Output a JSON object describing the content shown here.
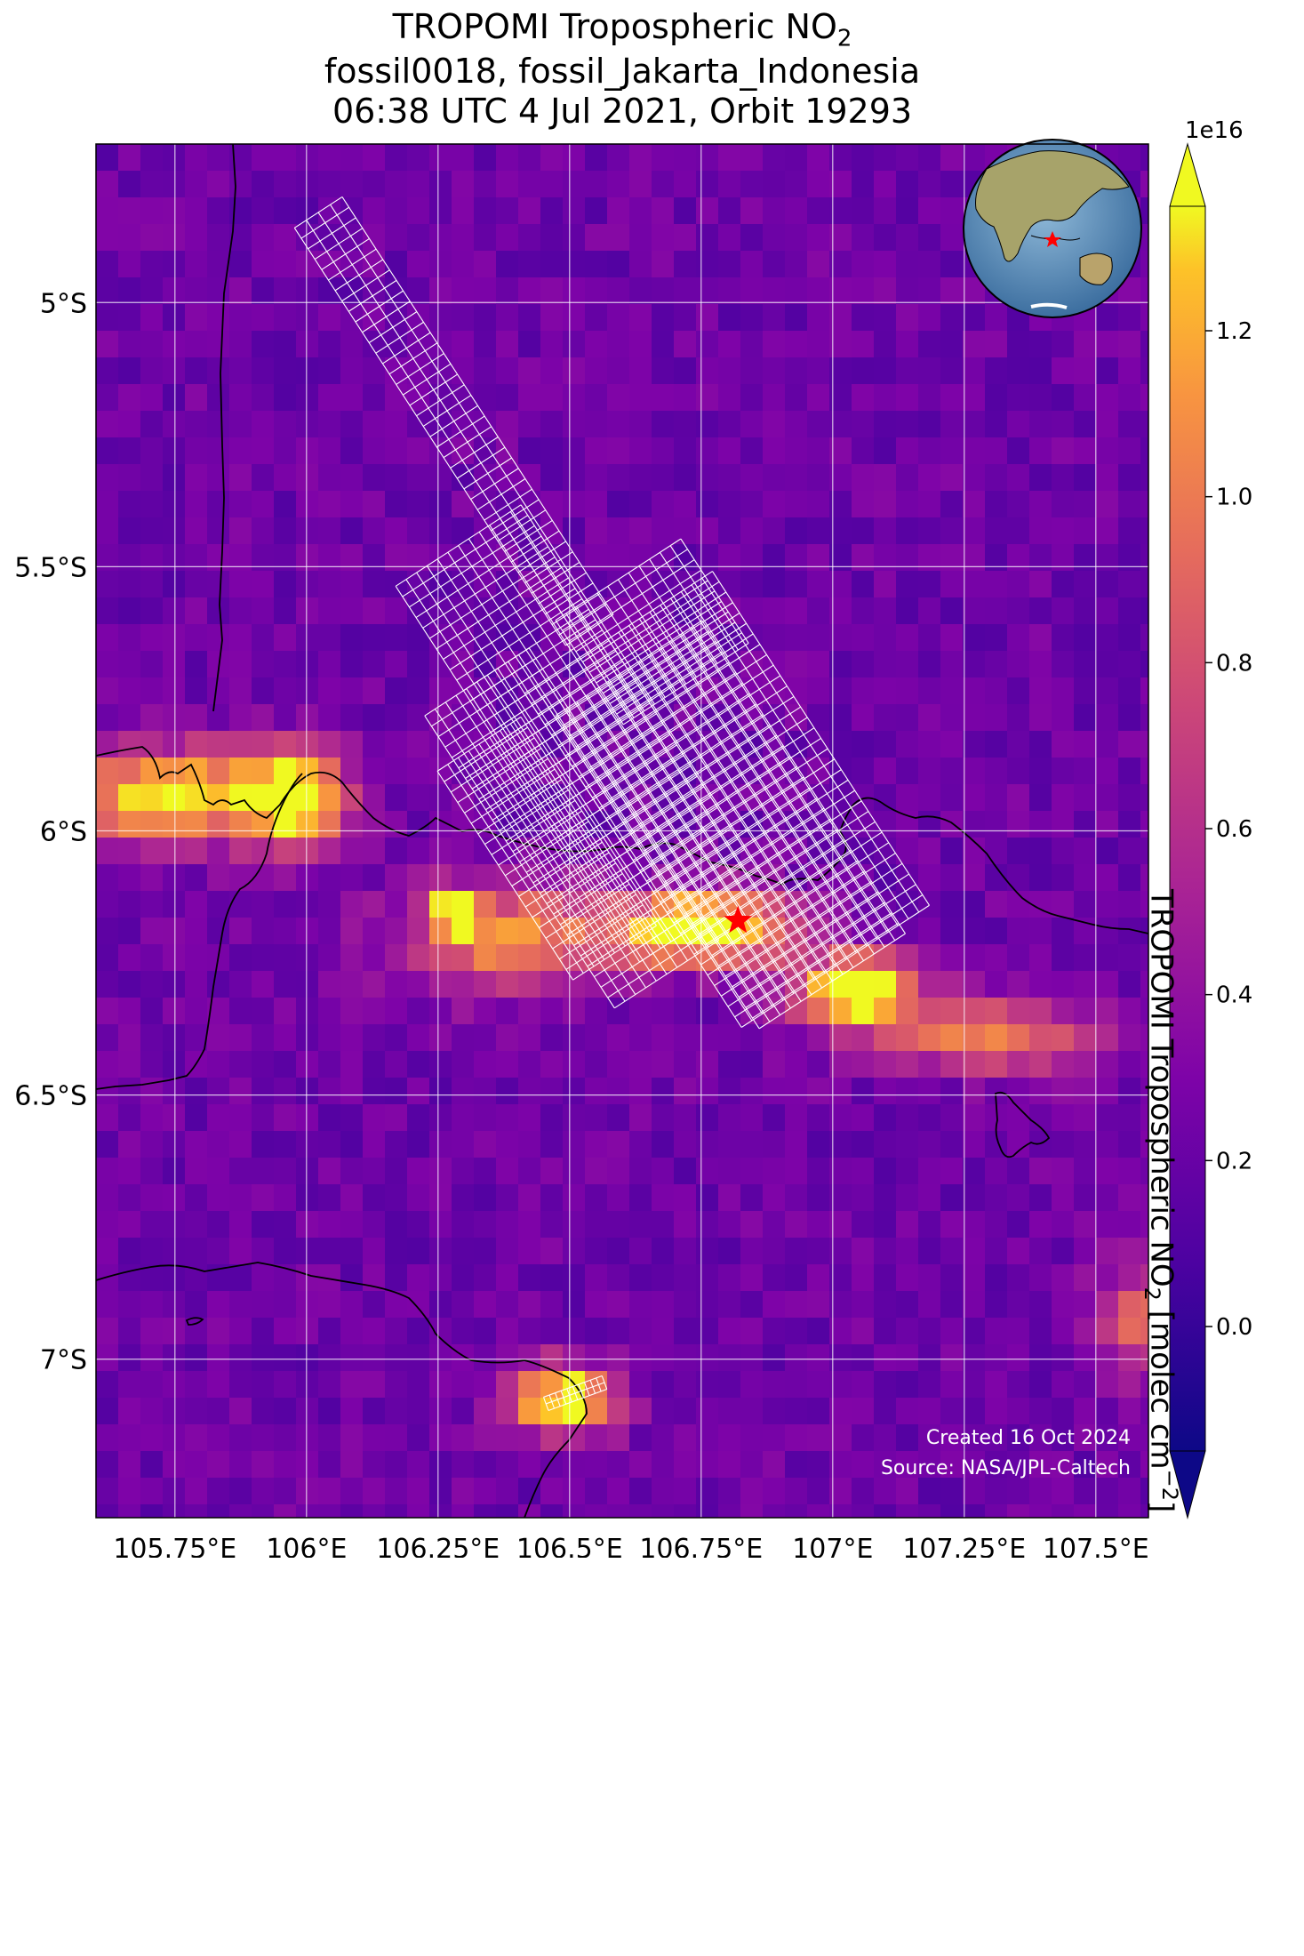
{
  "title": {
    "line1_main": "TROPOMI Tropospheric NO",
    "line1_sub": "2",
    "line2": "fossil0018, fossil_Jakarta_Indonesia",
    "line3": "06:38 UTC 4 Jul 2021, Orbit 19293"
  },
  "map": {
    "extent": {
      "lon_min": 105.6,
      "lon_max": 107.6,
      "lat_min": -7.3,
      "lat_max": -4.7
    },
    "lon_ticks": [
      105.75,
      106.0,
      106.25,
      106.5,
      106.75,
      107.0,
      107.25,
      107.5
    ],
    "lon_tick_labels": [
      "105.75°E",
      "106°E",
      "106.25°E",
      "106.5°E",
      "106.75°E",
      "107°E",
      "107.25°E",
      "107.5°E"
    ],
    "lat_ticks": [
      -5.0,
      -5.5,
      -6.0,
      -6.5,
      -7.0
    ],
    "lat_tick_labels": [
      "5°S",
      "5.5°S",
      "6°S",
      "6.5°S",
      "7°S"
    ],
    "grid": true,
    "target": {
      "lon": 106.82,
      "lat": -6.17,
      "marker": "star-icon",
      "color": "#ff0000"
    },
    "inset": "globe-icon",
    "colormap": "plasma"
  },
  "colorbar": {
    "offset_label": "1e16",
    "ticks": [
      0.0,
      0.2,
      0.4,
      0.6,
      0.8,
      1.0,
      1.2
    ],
    "tick_labels": [
      "0.0",
      "0.2",
      "0.4",
      "0.6",
      "0.8",
      "1.0",
      "1.2"
    ],
    "range": [
      -0.15,
      1.35
    ],
    "label_main": "TROPOMI Tropospheric NO",
    "label_sub": "2",
    "label_units": " [molec cm",
    "label_sup": "−2",
    "label_end": "]"
  },
  "footer": {
    "created": "Created 16 Oct 2024",
    "source": "Source: NASA/JPL-Caltech"
  }
}
